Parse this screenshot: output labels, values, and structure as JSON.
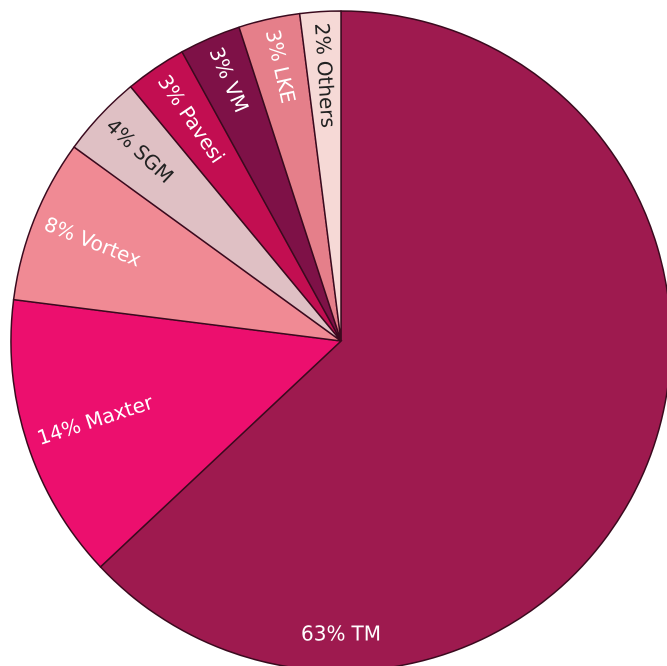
{
  "chart_data": {
    "type": "pie",
    "categories": [
      "TM",
      "Maxter",
      "Vortex",
      "SGM",
      "Pavesi",
      "VM",
      "LKE",
      "Others"
    ],
    "values": [
      63,
      14,
      8,
      4,
      3,
      3,
      3,
      2
    ],
    "value_labels": [
      "63%",
      "14%",
      "8%",
      "4%",
      "3%",
      "3%",
      "3%",
      "2%"
    ],
    "colors": [
      "#9e1a4f",
      "#ec0f6e",
      "#f08a94",
      "#dfc0c4",
      "#c20e51",
      "#7e1147",
      "#e57f8a",
      "#f6d9d6"
    ]
  }
}
